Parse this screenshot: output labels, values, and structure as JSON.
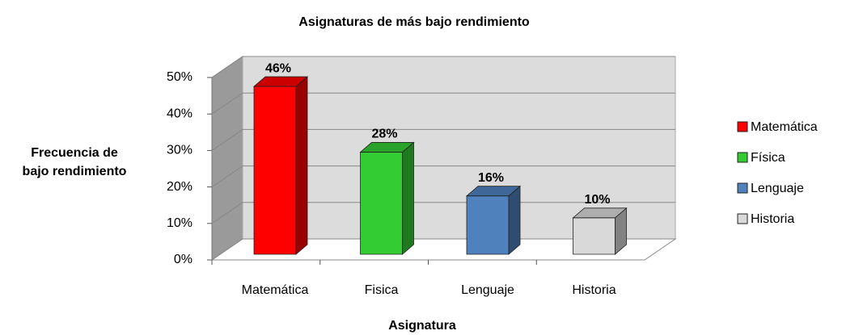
{
  "chart_data": {
    "type": "bar3d",
    "title": "Asignaturas de más bajo rendimiento",
    "categories": [
      "Matemática",
      "Fisica",
      "Lenguaje",
      "Historia"
    ],
    "values": [
      46,
      28,
      16,
      10
    ],
    "value_labels": [
      "46%",
      "28%",
      "16%",
      "10%"
    ],
    "colors": [
      "#ff0000",
      "#33cc33",
      "#4f81bd",
      "#d9d9d9"
    ],
    "legend": [
      "Matemática",
      "Física",
      "Lenguaje",
      "Historia"
    ],
    "legend_position": "right",
    "xlabel": "Asignatura",
    "ylabel": [
      "Frecuencia de",
      "bajo rendimiento"
    ],
    "ylim": [
      0,
      50
    ],
    "yticks": [
      {
        "value": 0,
        "label": "0%"
      },
      {
        "value": 10,
        "label": "10%"
      },
      {
        "value": 20,
        "label": "20%"
      },
      {
        "value": 30,
        "label": "30%"
      },
      {
        "value": 40,
        "label": "40%"
      },
      {
        "value": 50,
        "label": "50%"
      }
    ],
    "grid": true
  }
}
